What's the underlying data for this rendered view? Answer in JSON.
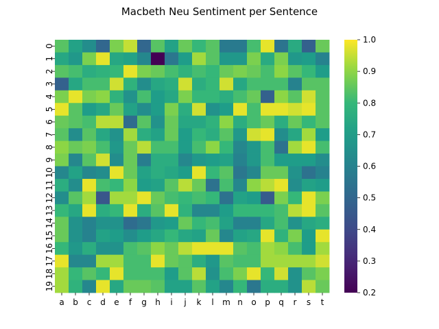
{
  "chart_data": {
    "type": "heatmap",
    "title": "Macbeth Neu Sentiment per Sentence",
    "xlabel": "",
    "ylabel": "",
    "x_categories": [
      "a",
      "b",
      "c",
      "d",
      "e",
      "f",
      "g",
      "h",
      "i",
      "j",
      "k",
      "l",
      "m",
      "n",
      "o",
      "p",
      "q",
      "r",
      "s",
      "t"
    ],
    "y_categories": [
      "0",
      "1",
      "2",
      "3",
      "4",
      "5",
      "6",
      "7",
      "8",
      "9",
      "10",
      "11",
      "12",
      "13",
      "14",
      "15",
      "16",
      "17",
      "18",
      "19"
    ],
    "colorbar": {
      "min": 0.2,
      "max": 1.0,
      "ticks": [
        "0.2",
        "0.3",
        "0.4",
        "0.5",
        "0.6",
        "0.7",
        "0.8",
        "0.9",
        "1.0"
      ],
      "colormap": "viridis"
    },
    "values": [
      [
        0.84,
        0.72,
        0.64,
        0.5,
        0.88,
        0.95,
        0.5,
        0.84,
        0.72,
        0.86,
        0.8,
        0.84,
        0.57,
        0.57,
        0.82,
        0.98,
        0.55,
        0.75,
        0.48,
        0.86
      ],
      [
        0.74,
        0.68,
        0.88,
        0.98,
        0.74,
        0.72,
        0.62,
        0.2,
        0.56,
        0.7,
        0.92,
        0.84,
        0.68,
        0.68,
        0.88,
        0.75,
        0.88,
        0.68,
        0.7,
        0.6
      ],
      [
        0.84,
        0.82,
        0.76,
        0.78,
        0.8,
        0.98,
        0.88,
        0.86,
        0.82,
        0.78,
        0.82,
        0.8,
        0.86,
        0.88,
        0.86,
        0.82,
        0.9,
        0.84,
        0.8,
        0.7
      ],
      [
        0.48,
        0.74,
        0.82,
        0.82,
        0.96,
        0.78,
        0.64,
        0.74,
        0.76,
        0.96,
        0.76,
        0.8,
        0.96,
        0.74,
        0.82,
        0.82,
        0.82,
        0.6,
        0.84,
        0.84
      ],
      [
        0.88,
        0.98,
        0.88,
        0.9,
        0.78,
        0.66,
        0.82,
        0.7,
        0.74,
        0.88,
        0.8,
        0.8,
        0.76,
        0.82,
        0.86,
        0.48,
        0.9,
        0.84,
        0.96,
        0.84
      ],
      [
        0.98,
        0.84,
        0.7,
        0.74,
        0.86,
        0.72,
        0.64,
        0.7,
        0.88,
        0.76,
        0.96,
        0.66,
        0.7,
        0.98,
        0.82,
        0.98,
        0.98,
        0.96,
        0.98,
        0.84
      ],
      [
        0.86,
        0.84,
        0.82,
        0.94,
        0.94,
        0.52,
        0.84,
        0.66,
        0.86,
        0.74,
        0.74,
        0.78,
        0.9,
        0.76,
        0.82,
        0.86,
        0.76,
        0.86,
        0.8,
        0.84
      ],
      [
        0.84,
        0.64,
        0.84,
        0.74,
        0.66,
        0.92,
        0.76,
        0.72,
        0.86,
        0.7,
        0.8,
        0.76,
        0.84,
        0.68,
        0.96,
        0.98,
        0.64,
        0.74,
        0.92,
        0.7
      ],
      [
        0.9,
        0.86,
        0.88,
        0.82,
        0.68,
        0.86,
        0.94,
        0.82,
        0.82,
        0.7,
        0.82,
        0.9,
        0.8,
        0.62,
        0.68,
        0.82,
        0.54,
        0.92,
        0.98,
        0.82
      ],
      [
        0.88,
        0.62,
        0.84,
        0.96,
        0.64,
        0.86,
        0.58,
        0.76,
        0.76,
        0.62,
        0.68,
        0.7,
        0.72,
        0.6,
        0.68,
        0.82,
        0.7,
        0.7,
        0.7,
        0.64
      ],
      [
        0.62,
        0.72,
        0.62,
        0.64,
        0.98,
        0.86,
        0.72,
        0.76,
        0.74,
        0.7,
        0.98,
        0.8,
        0.84,
        0.56,
        0.62,
        0.86,
        0.86,
        0.66,
        0.54,
        0.6
      ],
      [
        0.76,
        0.64,
        0.98,
        0.82,
        0.8,
        0.9,
        0.7,
        0.72,
        0.84,
        0.94,
        0.86,
        0.54,
        0.82,
        0.62,
        0.9,
        0.94,
        0.98,
        0.64,
        0.72,
        0.7
      ],
      [
        0.64,
        0.84,
        0.92,
        0.44,
        0.92,
        0.92,
        0.98,
        0.86,
        0.82,
        0.8,
        0.82,
        0.8,
        0.54,
        0.72,
        0.7,
        0.46,
        0.88,
        0.8,
        0.98,
        0.88
      ],
      [
        0.8,
        0.74,
        0.98,
        0.76,
        0.8,
        0.98,
        0.76,
        0.84,
        0.98,
        0.78,
        0.62,
        0.62,
        0.7,
        0.8,
        0.8,
        0.8,
        0.82,
        0.94,
        0.98,
        0.84
      ],
      [
        0.86,
        0.66,
        0.6,
        0.66,
        0.66,
        0.52,
        0.56,
        0.68,
        0.7,
        0.86,
        0.8,
        0.82,
        0.72,
        0.6,
        0.6,
        0.74,
        0.82,
        0.66,
        0.74,
        0.76
      ],
      [
        0.86,
        0.66,
        0.6,
        0.72,
        0.7,
        0.64,
        0.7,
        0.74,
        0.8,
        0.74,
        0.72,
        0.86,
        0.62,
        0.72,
        0.74,
        0.98,
        0.78,
        0.88,
        0.7,
        0.98
      ],
      [
        0.8,
        0.68,
        0.76,
        0.66,
        0.66,
        0.82,
        0.84,
        0.9,
        0.86,
        0.94,
        0.98,
        0.98,
        0.98,
        0.84,
        0.82,
        0.92,
        0.9,
        0.82,
        0.7,
        0.92
      ],
      [
        0.98,
        0.62,
        0.62,
        0.92,
        0.92,
        0.82,
        0.82,
        0.98,
        0.86,
        0.84,
        0.76,
        0.68,
        0.84,
        0.82,
        0.82,
        0.92,
        0.92,
        0.92,
        0.92,
        0.96
      ],
      [
        0.92,
        0.8,
        0.84,
        0.8,
        0.98,
        0.82,
        0.82,
        0.82,
        0.7,
        0.84,
        0.94,
        0.66,
        0.82,
        0.88,
        0.98,
        0.8,
        0.96,
        0.66,
        0.84,
        0.88
      ],
      [
        0.92,
        0.78,
        0.62,
        0.98,
        0.74,
        0.86,
        0.86,
        0.84,
        0.72,
        0.72,
        0.84,
        0.72,
        0.62,
        0.8,
        0.56,
        0.76,
        0.76,
        0.66,
        0.94,
        0.86
      ]
    ]
  }
}
